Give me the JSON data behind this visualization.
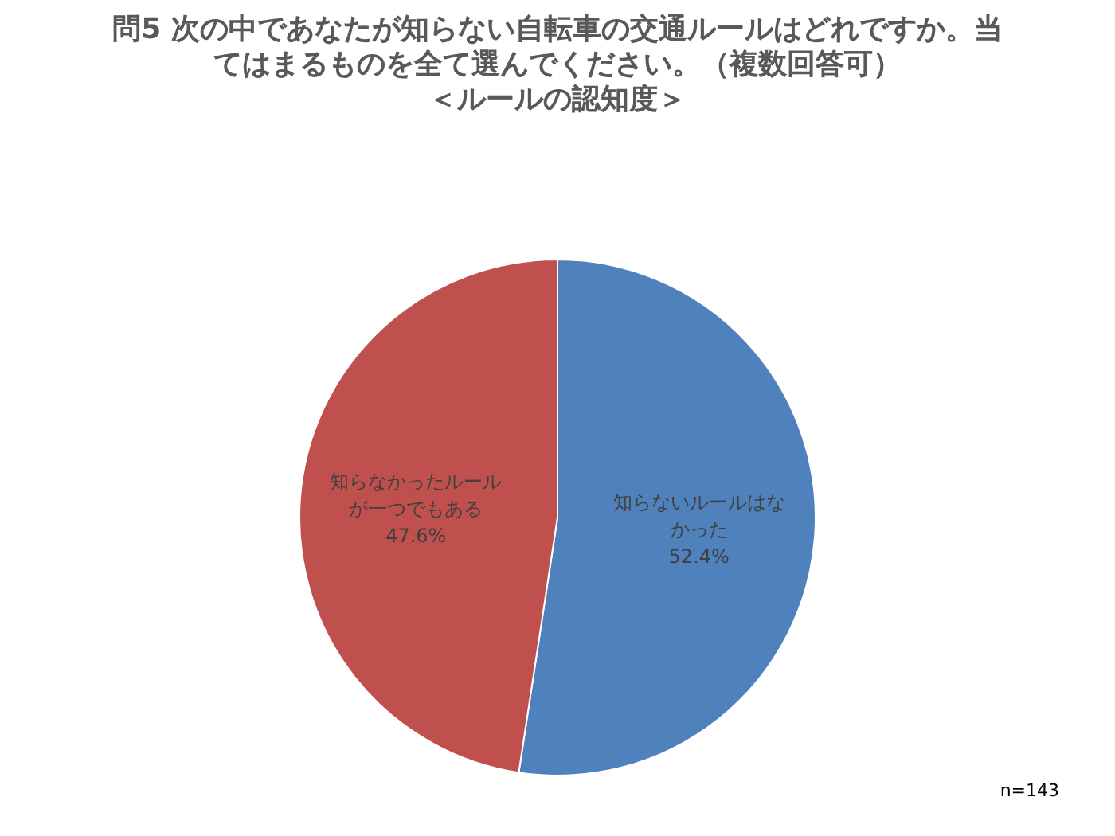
{
  "chart_data": {
    "type": "pie",
    "title": "問5  次の中であなたが知らない自転車の交通ルールはどれですか。当てはまるものを全て選んでください。（複数回答可）",
    "subtitle": "＜ルールの認知度＞",
    "categories": [
      "知らないルールはなかった",
      "知らなかったルールが一つでもある"
    ],
    "values": [
      52.4,
      47.6
    ],
    "colors": [
      "#4f81bd",
      "#c0504d"
    ],
    "value_labels": [
      "52.4%",
      "47.6%"
    ],
    "annotations": [
      "n=143"
    ]
  }
}
